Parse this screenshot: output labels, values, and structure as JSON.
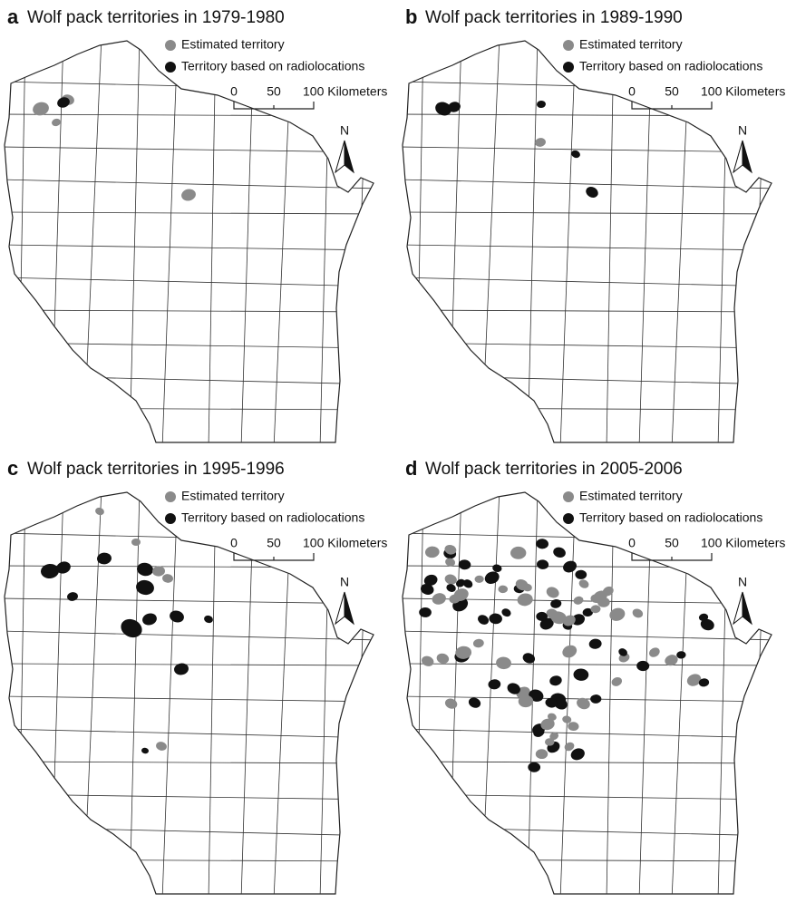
{
  "panels": [
    {
      "letter": "a",
      "title": "Wolf pack territories in 1979-1980",
      "legend": [
        "Estimated territory",
        "Territory based on radiolocations"
      ],
      "scale": [
        "0",
        "50",
        "100 Kilometers"
      ],
      "north": "N"
    },
    {
      "letter": "b",
      "title": "Wolf pack territories in 1989-1990",
      "legend": [
        "Estimated territory",
        "Territory based on radiolocations"
      ],
      "scale": [
        "0",
        "50",
        "100 Kilometers"
      ],
      "north": "N"
    },
    {
      "letter": "c",
      "title": "Wolf pack territories in 1995-1996",
      "legend": [
        "Estimated territory",
        "Territory based on radiolocations"
      ],
      "scale": [
        "0",
        "50",
        "100 Kilometers"
      ],
      "north": "N"
    },
    {
      "letter": "d",
      "title": "Wolf pack territories in 2005-2006",
      "legend": [
        "Estimated territory",
        "Territory based on radiolocations"
      ],
      "scale": [
        "0",
        "50",
        "100 Kilometers"
      ],
      "north": "N"
    }
  ]
}
